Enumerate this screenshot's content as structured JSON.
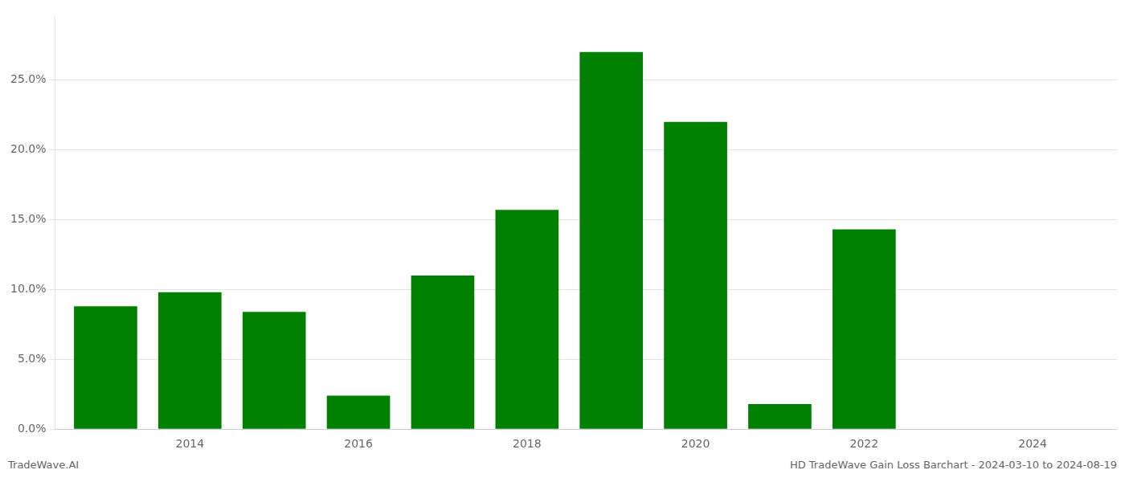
{
  "chart_data": {
    "type": "bar",
    "x": [
      2013,
      2014,
      2015,
      2016,
      2017,
      2018,
      2019,
      2020,
      2021,
      2022,
      2023,
      2024
    ],
    "values": [
      0.088,
      0.098,
      0.084,
      0.024,
      0.11,
      0.157,
      0.27,
      0.22,
      0.018,
      0.143,
      0.0,
      0.0
    ],
    "color": "#008000",
    "xlim": [
      2012.4,
      2025.0
    ],
    "xticks": [
      2014,
      2016,
      2018,
      2020,
      2022,
      2024
    ],
    "ylim": [
      0,
      0.295
    ],
    "yticks": [
      {
        "value": 0.0,
        "label": "0.0%"
      },
      {
        "value": 0.05,
        "label": "5.0%"
      },
      {
        "value": 0.1,
        "label": "10.0%"
      },
      {
        "value": 0.15,
        "label": "15.0%"
      },
      {
        "value": 0.2,
        "label": "20.0%"
      },
      {
        "value": 0.25,
        "label": "25.0%"
      }
    ],
    "grid": true,
    "annotations": [
      {
        "text": "TradeWave.AI"
      },
      {
        "text": "HD TradeWave Gain Loss Barchart - 2024-03-10 to 2024-08-19"
      }
    ]
  }
}
